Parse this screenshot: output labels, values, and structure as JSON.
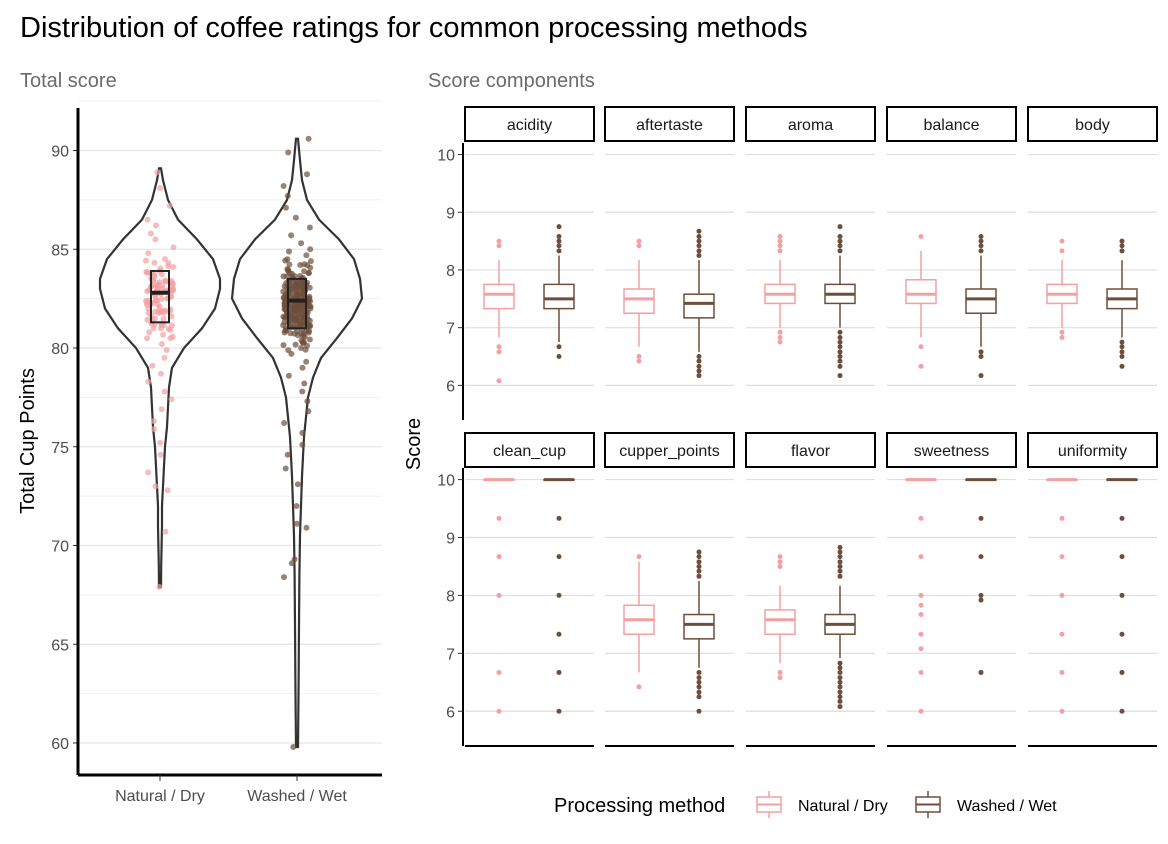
{
  "title": "Distribution of coffee ratings for common processing methods",
  "left_subtitle": "Total score",
  "right_subtitle": "Score components",
  "colors": {
    "natural": "#f4a0a0",
    "washed": "#6e4e3b",
    "violin": "#333333",
    "grid": "#e6e6e6"
  },
  "chart_data": [
    {
      "type": "violin",
      "panel": "Total score",
      "xlabel": "",
      "ylabel": "Total Cup Points",
      "ylim": [
        59,
        92.5
      ],
      "yticks": [
        60,
        65,
        70,
        75,
        80,
        85,
        90
      ],
      "categories": [
        "Natural / Dry",
        "Washed / Wet"
      ],
      "series": [
        {
          "name": "Natural / Dry",
          "min": 67.9,
          "q1": 81.3,
          "median": 82.8,
          "q3": 83.9,
          "max": 89.0,
          "jitter_sample": [
            88.9,
            88.1,
            87.2,
            86.5,
            86.2,
            85.8,
            85.5,
            85.1,
            84.8,
            84.5,
            84.3,
            84.1,
            83.9,
            83.8,
            83.6,
            83.5,
            83.4,
            83.2,
            83.1,
            83.0,
            82.9,
            82.8,
            82.7,
            82.6,
            82.5,
            82.4,
            82.3,
            82.2,
            82.0,
            81.9,
            81.8,
            81.6,
            81.4,
            81.2,
            81.0,
            80.8,
            80.5,
            80.2,
            79.9,
            79.5,
            79.1,
            78.7,
            78.3,
            77.8,
            77.4,
            76.9,
            76.3,
            75.9,
            75.2,
            74.6,
            73.7,
            73.0,
            72.8,
            70.7,
            67.9
          ]
        },
        {
          "name": "Washed / Wet",
          "min": 59.8,
          "q1": 81.0,
          "median": 82.4,
          "q3": 83.5,
          "max": 90.6,
          "jitter_sample": [
            90.6,
            89.9,
            88.8,
            88.2,
            87.7,
            87.1,
            86.6,
            86.1,
            85.7,
            85.3,
            85.0,
            84.7,
            84.4,
            84.2,
            84.0,
            83.8,
            83.6,
            83.4,
            83.3,
            83.1,
            83.0,
            82.9,
            82.7,
            82.6,
            82.5,
            82.4,
            82.3,
            82.2,
            82.1,
            82.0,
            81.8,
            81.7,
            81.5,
            81.3,
            81.1,
            80.9,
            80.6,
            80.3,
            80.0,
            79.7,
            79.3,
            79.0,
            78.6,
            78.2,
            77.8,
            77.3,
            76.8,
            76.2,
            75.7,
            75.1,
            74.6,
            73.9,
            73.1,
            72.0,
            71.1,
            70.9,
            69.3,
            69.1,
            68.4,
            59.8
          ]
        }
      ]
    },
    {
      "type": "box",
      "panel": "Score components",
      "xlabel": "",
      "ylabel": "Score",
      "ylim": [
        5.4,
        10.2
      ],
      "yticks": [
        6,
        7,
        8,
        9,
        10
      ],
      "legend": {
        "title": "Processing method",
        "position": "bottom",
        "entries": [
          "Natural / Dry",
          "Washed / Wet"
        ]
      },
      "facets": [
        {
          "name": "acidity",
          "natural": {
            "q1": 7.33,
            "median": 7.58,
            "q3": 7.75,
            "whisker_low": 6.83,
            "whisker_high": 8.17,
            "outliers": [
              8.5,
              8.42,
              6.67,
              6.58,
              6.08
            ]
          },
          "washed": {
            "q1": 7.33,
            "median": 7.5,
            "q3": 7.75,
            "whisker_low": 6.75,
            "whisker_high": 8.25,
            "outliers": [
              8.75,
              8.58,
              8.5,
              8.42,
              8.33,
              6.67,
              6.5
            ]
          }
        },
        {
          "name": "aftertaste",
          "natural": {
            "q1": 7.25,
            "median": 7.5,
            "q3": 7.67,
            "whisker_low": 6.67,
            "whisker_high": 8.17,
            "outliers": [
              8.5,
              8.42,
              6.5,
              6.42
            ]
          },
          "washed": {
            "q1": 7.17,
            "median": 7.42,
            "q3": 7.58,
            "whisker_low": 6.58,
            "whisker_high": 8.17,
            "outliers": [
              8.67,
              8.58,
              8.5,
              8.42,
              8.33,
              8.25,
              6.5,
              6.42,
              6.33,
              6.25,
              6.17
            ]
          }
        },
        {
          "name": "aroma",
          "natural": {
            "q1": 7.42,
            "median": 7.58,
            "q3": 7.75,
            "whisker_low": 7.0,
            "whisker_high": 8.17,
            "outliers": [
              8.58,
              8.5,
              8.42,
              8.33,
              6.92,
              6.83,
              6.75
            ]
          },
          "washed": {
            "q1": 7.42,
            "median": 7.58,
            "q3": 7.75,
            "whisker_low": 7.0,
            "whisker_high": 8.25,
            "outliers": [
              8.75,
              8.58,
              8.5,
              8.42,
              8.33,
              6.92,
              6.83,
              6.75,
              6.67,
              6.58,
              6.5,
              6.42,
              6.33,
              6.17
            ]
          }
        },
        {
          "name": "balance",
          "natural": {
            "q1": 7.42,
            "median": 7.58,
            "q3": 7.83,
            "whisker_low": 6.83,
            "whisker_high": 8.33,
            "outliers": [
              8.58,
              6.67,
              6.33
            ]
          },
          "washed": {
            "q1": 7.25,
            "median": 7.5,
            "q3": 7.67,
            "whisker_low": 6.67,
            "whisker_high": 8.25,
            "outliers": [
              8.58,
              8.5,
              8.42,
              8.33,
              6.58,
              6.5,
              6.17
            ]
          }
        },
        {
          "name": "body",
          "natural": {
            "q1": 7.42,
            "median": 7.58,
            "q3": 7.75,
            "whisker_low": 7.0,
            "whisker_high": 8.17,
            "outliers": [
              8.5,
              8.33,
              6.92,
              6.83
            ]
          },
          "washed": {
            "q1": 7.33,
            "median": 7.5,
            "q3": 7.67,
            "whisker_low": 6.83,
            "whisker_high": 8.17,
            "outliers": [
              8.5,
              8.42,
              8.33,
              6.75,
              6.67,
              6.58,
              6.5,
              6.33
            ]
          }
        },
        {
          "name": "clean_cup",
          "natural": {
            "q1": 10,
            "median": 10,
            "q3": 10,
            "whisker_low": 10,
            "whisker_high": 10,
            "outliers": [
              9.33,
              8.67,
              8.0,
              6.67,
              6.0
            ]
          },
          "washed": {
            "q1": 10,
            "median": 10,
            "q3": 10,
            "whisker_low": 10,
            "whisker_high": 10,
            "outliers": [
              9.33,
              8.67,
              8.0,
              7.33,
              6.67,
              6.0
            ]
          }
        },
        {
          "name": "cupper_points",
          "natural": {
            "q1": 7.33,
            "median": 7.58,
            "q3": 7.83,
            "whisker_low": 6.67,
            "whisker_high": 8.58,
            "outliers": [
              8.67,
              6.42
            ]
          },
          "washed": {
            "q1": 7.25,
            "median": 7.5,
            "q3": 7.67,
            "whisker_low": 6.75,
            "whisker_high": 8.25,
            "outliers": [
              8.75,
              8.67,
              8.58,
              8.5,
              8.42,
              8.33,
              6.67,
              6.58,
              6.5,
              6.42,
              6.33,
              6.25,
              6.0
            ]
          }
        },
        {
          "name": "flavor",
          "natural": {
            "q1": 7.33,
            "median": 7.58,
            "q3": 7.75,
            "whisker_low": 6.83,
            "whisker_high": 8.17,
            "outliers": [
              8.67,
              8.58,
              8.5,
              6.67,
              6.58
            ]
          },
          "washed": {
            "q1": 7.33,
            "median": 7.5,
            "q3": 7.67,
            "whisker_low": 6.92,
            "whisker_high": 8.17,
            "outliers": [
              8.83,
              8.75,
              8.67,
              8.58,
              8.5,
              8.42,
              8.33,
              6.83,
              6.75,
              6.67,
              6.58,
              6.5,
              6.42,
              6.33,
              6.25,
              6.17,
              6.08
            ]
          }
        },
        {
          "name": "sweetness",
          "natural": {
            "q1": 10,
            "median": 10,
            "q3": 10,
            "whisker_low": 10,
            "whisker_high": 10,
            "outliers": [
              9.33,
              8.67,
              8.0,
              7.83,
              7.67,
              7.33,
              7.08,
              6.67,
              6.0
            ]
          },
          "washed": {
            "q1": 10,
            "median": 10,
            "q3": 10,
            "whisker_low": 10,
            "whisker_high": 10,
            "outliers": [
              9.33,
              8.67,
              8.0,
              7.92,
              6.67
            ]
          }
        },
        {
          "name": "uniformity",
          "natural": {
            "q1": 10,
            "median": 10,
            "q3": 10,
            "whisker_low": 10,
            "whisker_high": 10,
            "outliers": [
              9.33,
              8.67,
              8.0,
              7.33,
              6.67,
              6.0
            ]
          },
          "washed": {
            "q1": 10,
            "median": 10,
            "q3": 10,
            "whisker_low": 10,
            "whisker_high": 10,
            "outliers": [
              9.33,
              8.67,
              8.0,
              7.33,
              6.67,
              6.0
            ]
          }
        }
      ]
    }
  ]
}
